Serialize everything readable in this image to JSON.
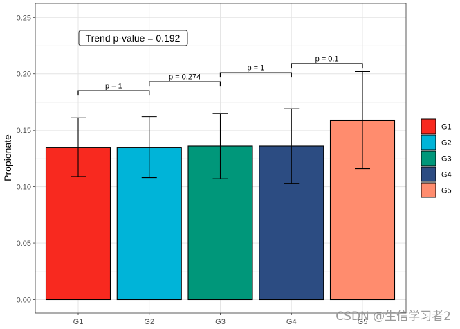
{
  "chart_data": {
    "type": "bar",
    "categories": [
      "G1",
      "G2",
      "G3",
      "G4",
      "G5"
    ],
    "values": [
      0.135,
      0.135,
      0.136,
      0.136,
      0.159
    ],
    "error_low": [
      0.109,
      0.108,
      0.107,
      0.103,
      0.116
    ],
    "error_high": [
      0.161,
      0.162,
      0.165,
      0.169,
      0.202
    ],
    "colors": [
      "#F8291F",
      "#00B4D8",
      "#00977A",
      "#2C4C82",
      "#FF8C6E"
    ],
    "ylabel": "Propionate",
    "xlabel": "",
    "ylim": [
      0,
      0.26
    ],
    "yticks": [
      "0.00",
      "0.05",
      "0.10",
      "0.15",
      "0.20",
      "0.25"
    ],
    "ytick_values": [
      0,
      0.05,
      0.1,
      0.15,
      0.2,
      0.25
    ],
    "grid": true,
    "legend": {
      "position": "right",
      "entries": [
        "G1",
        "G2",
        "G3",
        "G4",
        "G5"
      ]
    },
    "comparisons": [
      {
        "from": "G1",
        "to": "G2",
        "label": "p = 1",
        "y": 0.185
      },
      {
        "from": "G2",
        "to": "G3",
        "label": "p = 0.274",
        "y": 0.193
      },
      {
        "from": "G3",
        "to": "G4",
        "label": "p = 1",
        "y": 0.201
      },
      {
        "from": "G4",
        "to": "G5",
        "label": "p = 0.1",
        "y": 0.209
      }
    ],
    "annotation": "Trend p-value = 0.192"
  },
  "watermark": "CSDN @生信学习者2"
}
